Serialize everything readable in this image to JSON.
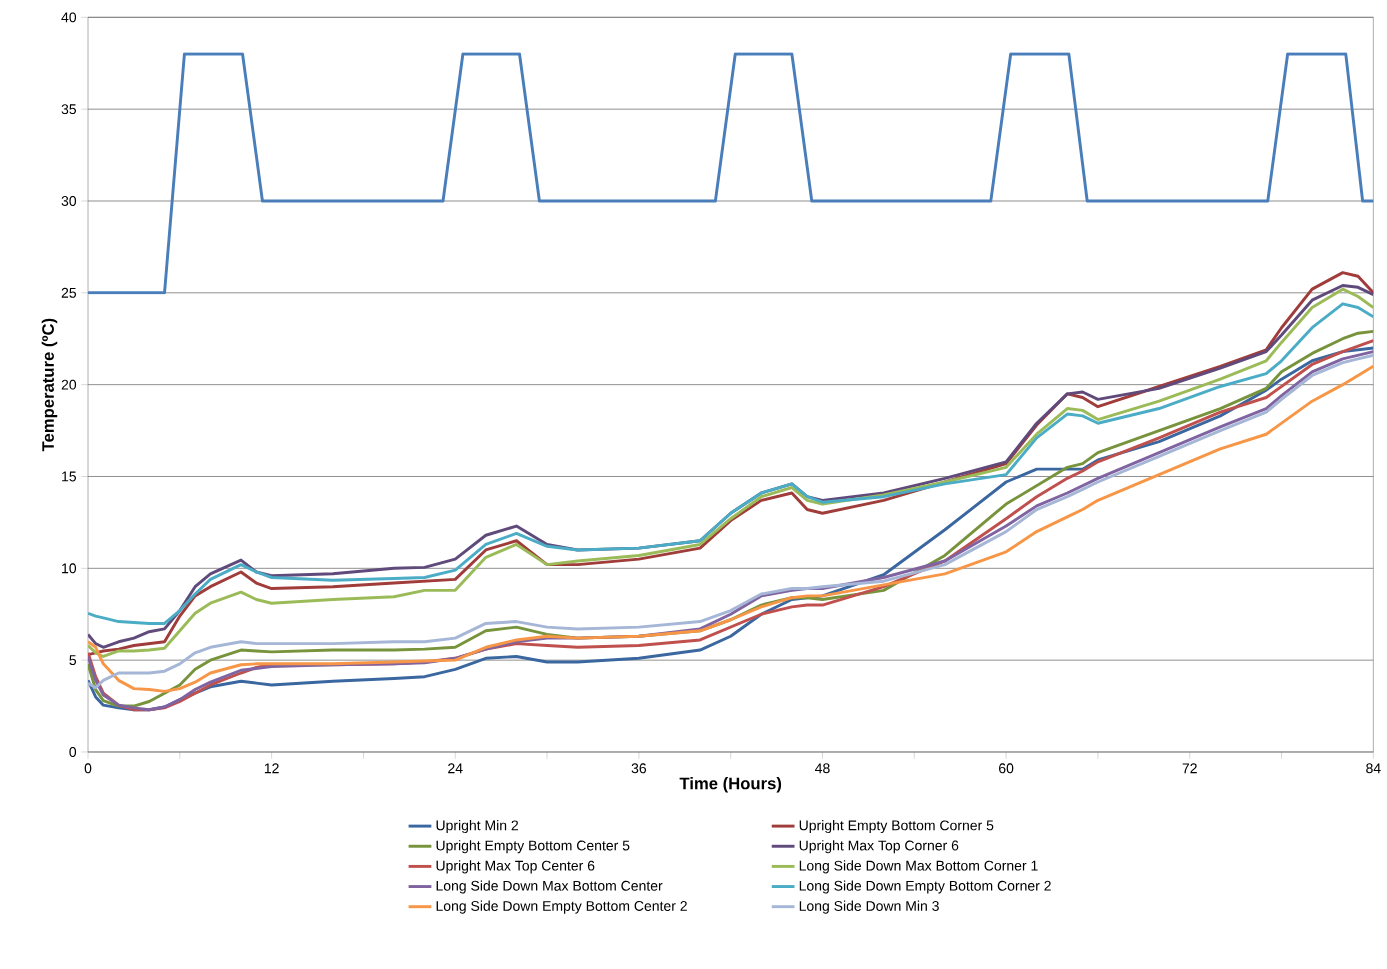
{
  "chart_data": {
    "type": "line",
    "xlabel": "Time (Hours)",
    "ylabel": "Temperature (ºC)",
    "x": [
      0,
      0.5,
      1,
      2,
      3,
      4,
      5,
      6,
      7,
      8,
      10,
      11,
      12,
      16,
      20,
      22,
      24,
      26,
      28,
      30,
      32,
      36,
      40,
      42,
      44,
      46,
      47,
      48,
      52,
      56,
      60,
      62,
      64,
      65,
      66,
      70,
      74,
      77,
      78,
      80,
      82,
      83,
      84
    ],
    "xlim": [
      0,
      84
    ],
    "ylim": [
      0,
      40
    ],
    "xticks": [
      0,
      {
        "value": 6,
        "label": null
      },
      12,
      {
        "value": 18,
        "label": null
      },
      24,
      {
        "value": 30,
        "label": null
      },
      36,
      {
        "value": 42,
        "label": null
      },
      48,
      {
        "value": 54,
        "label": null
      },
      60,
      {
        "value": 66,
        "label": null
      },
      72,
      {
        "value": 78,
        "label": null
      },
      84
    ],
    "yticks": [
      0,
      5,
      10,
      15,
      20,
      25,
      30,
      35,
      40
    ],
    "grid": "y",
    "legend": "bottom",
    "series": [
      {
        "color": "#4a7ebb",
        "x": [
          0,
          5,
          6.3,
          10.1,
          11.4,
          23.2,
          24.5,
          28.2,
          29.5,
          41.0,
          42.3,
          46.0,
          47.3,
          59.0,
          60.3,
          64.1,
          65.3,
          77.1,
          78.4,
          82.2,
          83.3,
          84
        ],
        "values": [
          25,
          25,
          38,
          38,
          30,
          30,
          38,
          38,
          30,
          30,
          38,
          38,
          30,
          30,
          38,
          38,
          30,
          30,
          38,
          38,
          30,
          30
        ]
      },
      {
        "name": "Upright Min 2",
        "color": "#3a67a0",
        "values": [
          3.9,
          3.0,
          2.55,
          2.4,
          2.3,
          2.3,
          2.45,
          2.85,
          3.2,
          3.55,
          3.85,
          3.75,
          3.65,
          3.85,
          4.0,
          4.1,
          4.5,
          5.1,
          5.2,
          4.9,
          4.9,
          5.1,
          5.55,
          6.3,
          7.5,
          8.3,
          8.4,
          8.5,
          9.65,
          12.1,
          14.7,
          15.4,
          15.4,
          15.4,
          15.9,
          16.9,
          18.3,
          19.7,
          20.3,
          21.3,
          21.8,
          21.9,
          22.0
        ]
      },
      {
        "name": "Upright Empty Bottom Corner 5",
        "color": "#a03c3a",
        "values": [
          5.3,
          5.4,
          5.5,
          5.6,
          5.8,
          5.9,
          6.0,
          7.4,
          8.5,
          9.0,
          9.8,
          9.2,
          8.9,
          9.0,
          9.2,
          9.3,
          9.4,
          11.0,
          11.5,
          10.2,
          10.2,
          10.5,
          11.1,
          12.6,
          13.7,
          14.1,
          13.2,
          13.0,
          13.7,
          14.7,
          15.7,
          17.8,
          19.5,
          19.3,
          18.8,
          19.9,
          21.0,
          21.9,
          23.1,
          25.2,
          26.1,
          25.9,
          25.0
        ]
      },
      {
        "name": "Upright Empty Bottom Center 5",
        "color": "#77933c",
        "values": [
          4.8,
          3.4,
          2.8,
          2.5,
          2.5,
          2.75,
          3.2,
          3.65,
          4.5,
          5.0,
          5.55,
          5.5,
          5.45,
          5.55,
          5.55,
          5.6,
          5.7,
          6.6,
          6.8,
          6.4,
          6.2,
          6.3,
          6.6,
          7.2,
          8.0,
          8.4,
          8.4,
          8.3,
          8.8,
          10.7,
          13.5,
          14.5,
          15.5,
          15.7,
          16.3,
          17.5,
          18.7,
          19.8,
          20.7,
          21.7,
          22.5,
          22.8,
          22.9
        ]
      },
      {
        "name": "Upright Max Top Corner 6",
        "color": "#604a7b",
        "values": [
          6.4,
          5.9,
          5.7,
          6.0,
          6.2,
          6.55,
          6.7,
          7.7,
          9.0,
          9.7,
          10.45,
          9.8,
          9.6,
          9.7,
          10.0,
          10.05,
          10.5,
          11.8,
          12.3,
          11.3,
          11.0,
          11.1,
          11.5,
          13.0,
          14.1,
          14.6,
          13.9,
          13.7,
          14.1,
          14.9,
          15.8,
          17.9,
          19.5,
          19.6,
          19.2,
          19.8,
          20.9,
          21.8,
          22.7,
          24.6,
          25.4,
          25.3,
          24.9
        ]
      },
      {
        "name": "Upright Max Top Center 6",
        "color": "#c0504d",
        "values": [
          5.4,
          4.1,
          3.2,
          2.55,
          2.3,
          2.3,
          2.4,
          2.75,
          3.2,
          3.65,
          4.3,
          4.6,
          4.75,
          4.75,
          4.8,
          4.9,
          5.1,
          5.6,
          5.9,
          5.8,
          5.7,
          5.8,
          6.1,
          6.8,
          7.5,
          7.9,
          8.0,
          8.0,
          9.0,
          10.4,
          12.7,
          13.9,
          14.9,
          15.3,
          15.8,
          17.1,
          18.5,
          19.3,
          19.9,
          21.1,
          21.8,
          22.1,
          22.4
        ]
      },
      {
        "name": "Long Side Down Max Bottom Corner 1",
        "color": "#9bbb59",
        "values": [
          5.8,
          5.4,
          5.2,
          5.5,
          5.5,
          5.55,
          5.65,
          6.6,
          7.55,
          8.1,
          8.7,
          8.3,
          8.1,
          8.3,
          8.45,
          8.8,
          8.8,
          10.6,
          11.3,
          10.2,
          10.4,
          10.7,
          11.3,
          12.7,
          13.9,
          14.4,
          13.7,
          13.5,
          14.0,
          14.7,
          15.5,
          17.3,
          18.7,
          18.6,
          18.1,
          19.1,
          20.3,
          21.3,
          22.3,
          24.2,
          25.2,
          24.8,
          24.2
        ]
      },
      {
        "name": "Long Side Down Max Bottom Center",
        "color": "#8064a2",
        "values": [
          5.2,
          3.9,
          3.1,
          2.55,
          2.4,
          2.3,
          2.45,
          2.85,
          3.4,
          3.8,
          4.45,
          4.55,
          4.65,
          4.75,
          4.8,
          4.85,
          5.1,
          5.6,
          6.0,
          6.2,
          6.2,
          6.3,
          6.7,
          7.5,
          8.5,
          8.8,
          8.9,
          8.9,
          9.5,
          10.4,
          12.3,
          13.4,
          14.1,
          14.5,
          14.9,
          16.3,
          17.7,
          18.7,
          19.4,
          20.7,
          21.4,
          21.6,
          21.8
        ]
      },
      {
        "name": "Long Side Down Empty Bottom Corner 2",
        "color": "#4bacc6",
        "values": [
          7.55,
          7.4,
          7.3,
          7.1,
          7.05,
          7.0,
          7.0,
          7.7,
          8.6,
          9.4,
          10.2,
          9.8,
          9.5,
          9.35,
          9.45,
          9.5,
          9.9,
          11.3,
          11.9,
          11.2,
          11.0,
          11.1,
          11.5,
          13.0,
          14.1,
          14.6,
          13.9,
          13.6,
          13.9,
          14.6,
          15.1,
          17.1,
          18.4,
          18.3,
          17.9,
          18.7,
          19.9,
          20.6,
          21.3,
          23.1,
          24.4,
          24.2,
          23.7
        ]
      },
      {
        "name": "Long Side Down Empty Bottom Center 2",
        "color": "#f79646",
        "values": [
          6.0,
          5.7,
          4.8,
          3.9,
          3.45,
          3.4,
          3.3,
          3.45,
          3.8,
          4.3,
          4.75,
          4.8,
          4.8,
          4.8,
          4.9,
          4.95,
          5.0,
          5.7,
          6.1,
          6.3,
          6.2,
          6.3,
          6.6,
          7.2,
          7.9,
          8.4,
          8.5,
          8.5,
          9.1,
          9.7,
          10.9,
          12.0,
          12.8,
          13.2,
          13.7,
          15.1,
          16.5,
          17.3,
          17.9,
          19.1,
          20.0,
          20.5,
          21.0
        ]
      },
      {
        "name": "Long Side Down Min 3",
        "color": "#a5b6d6",
        "values": [
          3.75,
          3.5,
          3.9,
          4.3,
          4.3,
          4.3,
          4.4,
          4.8,
          5.4,
          5.7,
          6.0,
          5.9,
          5.9,
          5.9,
          6.0,
          6.0,
          6.2,
          7.0,
          7.1,
          6.8,
          6.7,
          6.8,
          7.1,
          7.7,
          8.6,
          8.9,
          8.9,
          9.0,
          9.3,
          10.2,
          12.0,
          13.2,
          13.9,
          14.3,
          14.7,
          16.1,
          17.5,
          18.5,
          19.2,
          20.5,
          21.2,
          21.4,
          21.6
        ]
      }
    ]
  }
}
